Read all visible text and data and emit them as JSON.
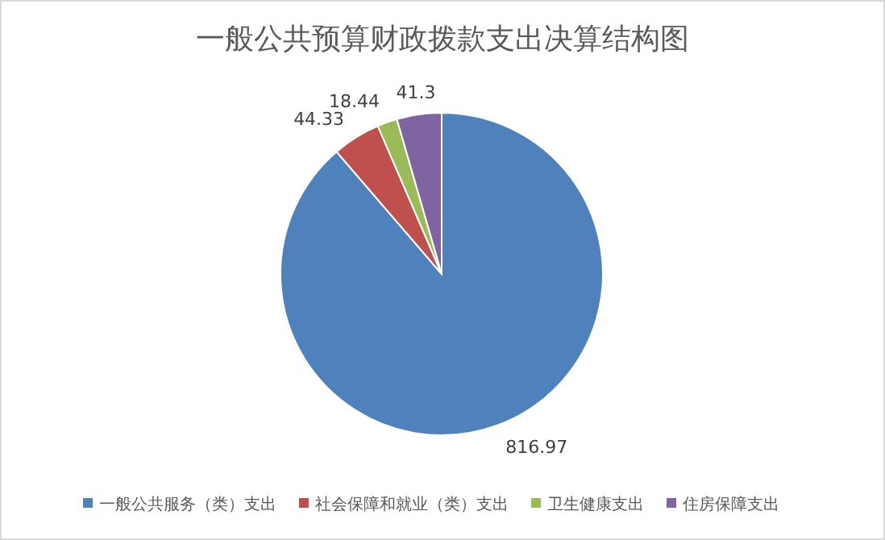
{
  "chart_data": {
    "type": "pie",
    "title": "一般公共预算财政拨款支出决算结构图",
    "categories": [
      "一般公共服务（类）支出",
      "社会保障和就业（类）支出",
      "卫生健康支出",
      "住房保障支出"
    ],
    "values": [
      816.97,
      44.33,
      18.44,
      41.3
    ],
    "colors": [
      "#4f81bd",
      "#c0504d",
      "#9bbb59",
      "#8064a2"
    ],
    "data_labels": true,
    "legend": "bottom"
  }
}
